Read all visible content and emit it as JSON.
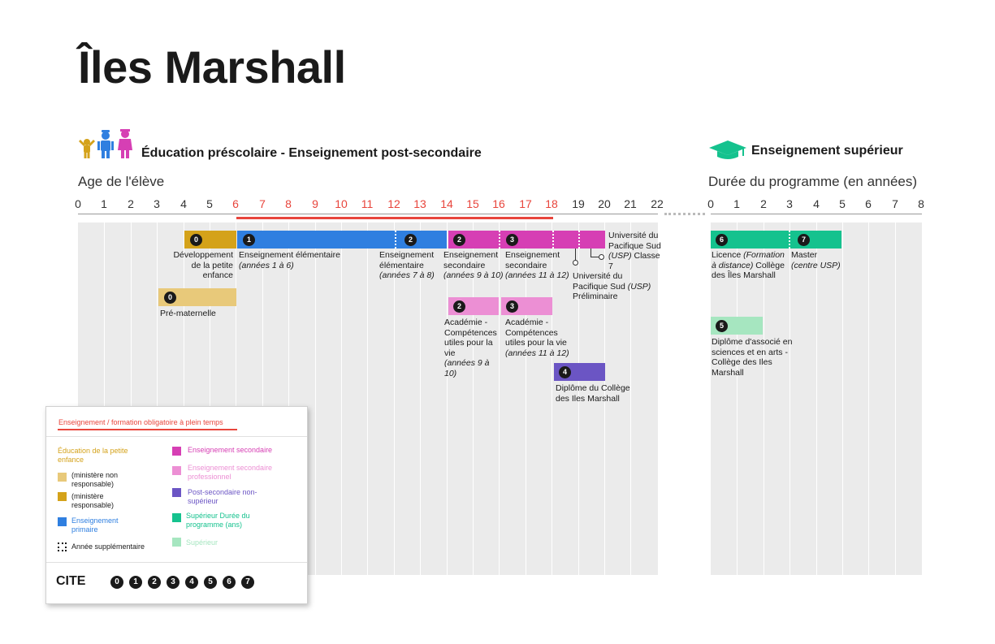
{
  "title": "Îles Marshall",
  "sections": {
    "left_title": "Éducation préscolaire - Enseignement post-secondaire",
    "right_title": "Enseignement supérieur",
    "left_axis_caption": "Age de l'élève",
    "right_axis_caption": "Durée du programme (en années)"
  },
  "axis": {
    "age_ticks": [
      "0",
      "1",
      "2",
      "3",
      "4",
      "5",
      "6",
      "7",
      "8",
      "9",
      "10",
      "11",
      "12",
      "13",
      "14",
      "15",
      "16",
      "17",
      "18",
      "19",
      "20",
      "21",
      "22"
    ],
    "compulsory_range": [
      6,
      18
    ],
    "duration_ticks": [
      "0",
      "1",
      "2",
      "3",
      "4",
      "5",
      "6",
      "7",
      "8"
    ]
  },
  "colors": {
    "ecec_light": "#e8c97a",
    "ecec_dark": "#d4a21a",
    "primary": "#2f7fe0",
    "secondary": "#d63fb4",
    "secondary_vocational": "#ec8fd4",
    "post_secondary": "#6b55c4",
    "tertiary_duration": "#15c28e",
    "tertiary": "#a6e6c0",
    "compulsory": "#e8453c"
  },
  "programs": {
    "p0": {
      "isced": "0",
      "label": "Développement de la petite enfance"
    },
    "p1": {
      "isced": "1",
      "label": "Enseignement élémentaire",
      "sub": "(années 1 à 6)"
    },
    "p2": {
      "isced": "2",
      "label": "Enseignement élémentaire",
      "sub": "(années 7 à 8)"
    },
    "p3": {
      "isced": "2",
      "label": "Enseignement secondaire",
      "sub": "(années 9 à 10)"
    },
    "p4": {
      "isced": "3",
      "label": "Enseignement secondaire",
      "sub": "(années 11 à 12)"
    },
    "p5": {
      "label_a": "Université du Pacifique Sud",
      "label_b": "(USP)",
      "label_c": "Classe 7"
    },
    "p6": {
      "label_a": "Université du Pacifique Sud",
      "label_b": "(USP)",
      "label_c": "Préliminaire"
    },
    "p7": {
      "isced": "0",
      "label": "Pré-maternelle"
    },
    "p8": {
      "isced": "2",
      "label": "Académie - Compétences utiles pour la vie",
      "sub": "(années 9 à 10)"
    },
    "p9": {
      "isced": "3",
      "label": "Académie - Compétences utiles pour la vie",
      "sub": "(années 11 à 12)"
    },
    "p10": {
      "isced": "4",
      "label": "Diplôme du Collège des Iles Marshall"
    },
    "t1": {
      "isced": "6",
      "label": "Licence",
      "sub": "(Formation à distance)",
      "label2": "Collège des Îles Marshall"
    },
    "t2": {
      "isced": "7",
      "label": "Master",
      "sub": "(centre USP)"
    },
    "t3": {
      "isced": "5",
      "label": "Diplôme d'associé en sciences et en arts - Collège des Iles Marshall"
    }
  },
  "legend": {
    "compulsory": "Enseignement / formation obligatoire à plein temps",
    "ecec_title": "Éducation de la petite enfance",
    "ecec_not_resp": "(ministère non responsable)",
    "ecec_resp": "(ministère responsable)",
    "primary": "Enseignement primaire",
    "extra_year": "Année supplémentaire",
    "secondary": "Enseignement secondaire",
    "secondary_voc": "Enseignement secondaire professionnel",
    "post_sec": "Post-secondaire non-supérieur",
    "tertiary_dur": "Supérieur Durée du programme (ans)",
    "tertiary": "Supérieur",
    "cite_label": "CITE",
    "cite_levels": [
      "0",
      "1",
      "2",
      "3",
      "4",
      "5",
      "6",
      "7"
    ]
  }
}
